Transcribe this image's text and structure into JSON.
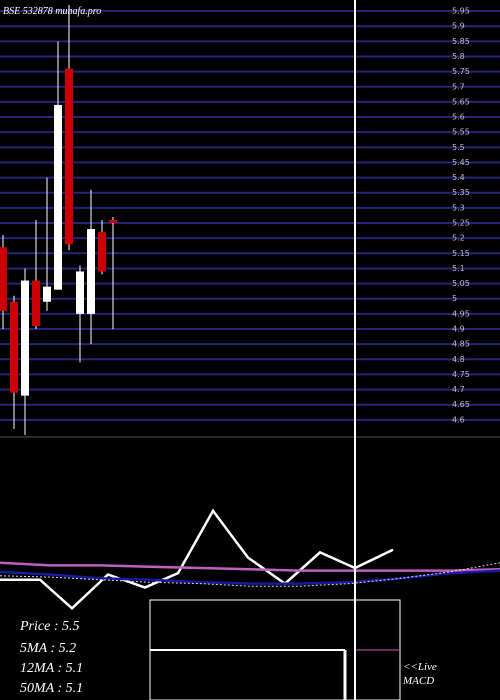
{
  "chart_data": [
    {
      "type": "candlestick",
      "title": "BSE 532878 munafa.pro",
      "categories": [
        null,
        null,
        null,
        null,
        null,
        null,
        null,
        null,
        null,
        null,
        null
      ],
      "open": [
        5.17,
        4.99,
        4.68,
        5.06,
        4.99,
        5.03,
        5.76,
        4.95,
        4.95,
        5.22,
        5.26
      ],
      "high": [
        5.21,
        5.01,
        5.1,
        5.26,
        5.4,
        5.85,
        5.97,
        5.11,
        5.36,
        5.26,
        5.27
      ],
      "low": [
        4.9,
        4.57,
        4.55,
        4.9,
        4.96,
        5.03,
        5.16,
        4.79,
        4.85,
        5.08,
        4.9
      ],
      "close": [
        4.96,
        4.69,
        5.06,
        4.91,
        5.04,
        5.64,
        5.18,
        5.09,
        5.23,
        5.09,
        5.25
      ],
      "up_color": "#ffffff",
      "down_color": "#cc0000",
      "grid_color": "#25257a",
      "ylim": [
        4.55,
        5.97
      ],
      "yticks": [
        4.6,
        4.65,
        4.7,
        4.75,
        4.8,
        4.85,
        4.9,
        4.95,
        5.0,
        5.05,
        5.1,
        5.15,
        5.2,
        5.25,
        5.3,
        5.35,
        5.4,
        5.45,
        5.5,
        5.55,
        5.6,
        5.65,
        5.7,
        5.75,
        5.8,
        5.85,
        5.9,
        5.95
      ],
      "grid": true,
      "stats": [
        "Price  : 5.5",
        "5MA : 5.2",
        "12MA : 5.1",
        "50MA : 5.1"
      ],
      "links": [
        "<<Live",
        "MACD"
      ]
    },
    {
      "type": "line",
      "xlim": [
        0,
        500
      ],
      "ylim": [
        0,
        100
      ],
      "x": [
        0,
        50,
        100,
        150,
        200,
        250,
        300,
        350,
        400,
        450,
        500
      ],
      "series": [
        {
          "color": "#ffffff",
          "x": [
            0,
            40,
            72,
            108,
            145,
            178,
            213,
            248,
            285,
            320,
            355,
            393
          ],
          "values": [
            31,
            31,
            9,
            35,
            25,
            36,
            84,
            48,
            28,
            52,
            40,
            54
          ]
        },
        {
          "color": "#c060c0",
          "values": [
            44,
            42,
            42,
            41,
            40,
            39,
            38,
            38,
            38,
            38,
            39
          ]
        },
        {
          "color": "#1a1aa0",
          "values": [
            37,
            35,
            32,
            31,
            29,
            28,
            28,
            29,
            32,
            36,
            38
          ]
        },
        {
          "color": "#dddddd",
          "dash": true,
          "values": [
            34,
            33,
            31,
            29,
            28,
            26,
            26,
            28,
            32,
            37,
            44
          ]
        }
      ]
    }
  ]
}
